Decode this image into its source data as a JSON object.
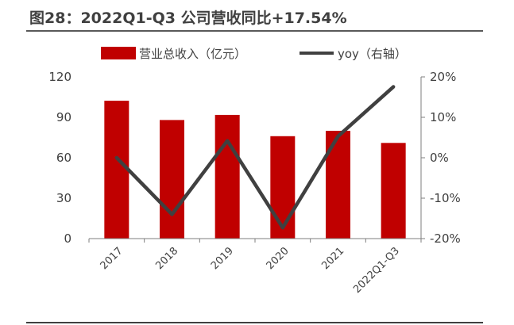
{
  "title": "图28：2022Q1-Q3 公司营收同比+17.54%",
  "chart_data": {
    "type": "bar",
    "categories": [
      "2017",
      "2018",
      "2019",
      "2020",
      "2021",
      "2022Q1-Q3"
    ],
    "series": [
      {
        "name": "营业总收入（亿元）",
        "type": "bar",
        "axis": "left",
        "color": "#C00000",
        "values": [
          102.3,
          88.0,
          91.8,
          76.0,
          80.0,
          71.0
        ]
      },
      {
        "name": "yoy（右轴）",
        "type": "line",
        "axis": "right",
        "color": "#404040",
        "unit": "%",
        "values": [
          0.0,
          -14.0,
          4.2,
          -17.3,
          5.3,
          17.54
        ]
      }
    ],
    "y_left": {
      "ylim": [
        0,
        120
      ],
      "ticks": [
        0,
        30,
        60,
        90,
        120
      ],
      "tick_labels": [
        "0",
        "30",
        "60",
        "90",
        "120"
      ]
    },
    "y_right": {
      "ylim": [
        -20,
        20
      ],
      "ticks": [
        -20,
        -10,
        0,
        10,
        20
      ],
      "tick_labels": [
        "-20%",
        "-10%",
        "0%",
        "10%",
        "20%"
      ]
    },
    "legend_position": "top",
    "grid": false
  }
}
